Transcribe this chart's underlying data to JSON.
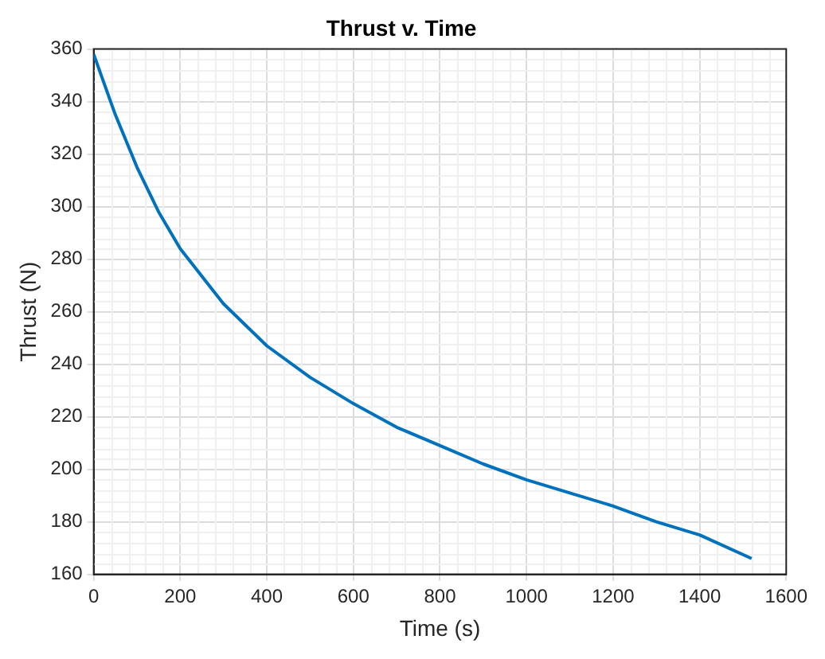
{
  "chart_data": {
    "type": "line",
    "title": "Thrust v. Time",
    "xlabel": "Time (s)",
    "ylabel": "Thrust (N)",
    "x": [
      0,
      50,
      100,
      150,
      200,
      300,
      400,
      500,
      600,
      700,
      800,
      900,
      1000,
      1100,
      1200,
      1300,
      1400,
      1520
    ],
    "series": [
      {
        "color": "#0072bd",
        "values": [
          358,
          335,
          315,
          298,
          284,
          263,
          247,
          235,
          225,
          216,
          209,
          202,
          196,
          191,
          186,
          180,
          175,
          166
        ]
      }
    ],
    "xlim": [
      0,
      1600
    ],
    "xticks": [
      0,
      200,
      400,
      600,
      800,
      1000,
      1200,
      1400,
      1600
    ],
    "ylim": [
      160,
      360
    ],
    "yticks": [
      160,
      180,
      200,
      220,
      240,
      260,
      280,
      300,
      320,
      340,
      360
    ],
    "grid": true,
    "legend": false,
    "marker": "none",
    "line_style": "solid"
  }
}
